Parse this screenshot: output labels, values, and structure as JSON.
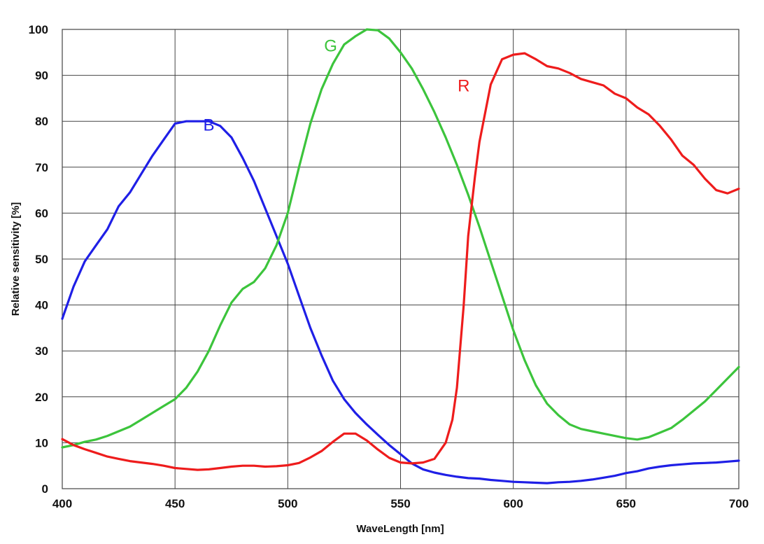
{
  "chart_data": {
    "type": "line",
    "title": "",
    "xlabel": "WaveLength [nm]",
    "ylabel": "Relative sensitivity [%]",
    "xlim": [
      400,
      700
    ],
    "ylim": [
      0,
      100
    ],
    "xticks": [
      400,
      450,
      500,
      550,
      600,
      650,
      700
    ],
    "yticks": [
      0,
      10,
      20,
      30,
      40,
      50,
      60,
      70,
      80,
      90,
      100
    ],
    "grid": true,
    "legend": "inline labels",
    "series": [
      {
        "name": "B",
        "color": "#1f1fe6",
        "label_at": [
          465,
          78
        ],
        "points": [
          [
            400,
            37
          ],
          [
            405,
            44
          ],
          [
            410,
            49.5
          ],
          [
            415,
            53
          ],
          [
            420,
            56.5
          ],
          [
            425,
            61.5
          ],
          [
            430,
            64.5
          ],
          [
            435,
            68.5
          ],
          [
            440,
            72.5
          ],
          [
            445,
            76
          ],
          [
            450,
            79.5
          ],
          [
            455,
            80
          ],
          [
            460,
            80
          ],
          [
            465,
            80
          ],
          [
            470,
            79
          ],
          [
            475,
            76.5
          ],
          [
            480,
            72
          ],
          [
            485,
            67
          ],
          [
            490,
            61
          ],
          [
            495,
            55
          ],
          [
            500,
            49
          ],
          [
            505,
            42
          ],
          [
            510,
            35
          ],
          [
            515,
            29
          ],
          [
            520,
            23.5
          ],
          [
            525,
            19.5
          ],
          [
            530,
            16.5
          ],
          [
            535,
            14
          ],
          [
            540,
            11.7
          ],
          [
            545,
            9.5
          ],
          [
            550,
            7.5
          ],
          [
            555,
            5.5
          ],
          [
            560,
            4.2
          ],
          [
            565,
            3.5
          ],
          [
            570,
            3
          ],
          [
            575,
            2.6
          ],
          [
            580,
            2.3
          ],
          [
            585,
            2.2
          ],
          [
            590,
            1.9
          ],
          [
            595,
            1.7
          ],
          [
            600,
            1.5
          ],
          [
            605,
            1.4
          ],
          [
            610,
            1.3
          ],
          [
            615,
            1.2
          ],
          [
            620,
            1.4
          ],
          [
            625,
            1.5
          ],
          [
            630,
            1.7
          ],
          [
            635,
            2
          ],
          [
            640,
            2.4
          ],
          [
            645,
            2.8
          ],
          [
            650,
            3.4
          ],
          [
            655,
            3.8
          ],
          [
            660,
            4.4
          ],
          [
            665,
            4.8
          ],
          [
            670,
            5.1
          ],
          [
            675,
            5.3
          ],
          [
            680,
            5.5
          ],
          [
            685,
            5.6
          ],
          [
            690,
            5.7
          ],
          [
            695,
            5.9
          ],
          [
            700,
            6.1
          ]
        ]
      },
      {
        "name": "G",
        "color": "#3cc43c",
        "label_at": [
          519,
          95.2
        ],
        "points": [
          [
            400,
            9
          ],
          [
            405,
            9.5
          ],
          [
            410,
            10.2
          ],
          [
            415,
            10.7
          ],
          [
            420,
            11.5
          ],
          [
            425,
            12.5
          ],
          [
            430,
            13.5
          ],
          [
            435,
            15
          ],
          [
            440,
            16.5
          ],
          [
            445,
            18
          ],
          [
            450,
            19.5
          ],
          [
            455,
            22
          ],
          [
            460,
            25.5
          ],
          [
            465,
            30
          ],
          [
            470,
            35.5
          ],
          [
            475,
            40.5
          ],
          [
            480,
            43.5
          ],
          [
            485,
            45
          ],
          [
            490,
            48
          ],
          [
            495,
            53
          ],
          [
            500,
            60
          ],
          [
            505,
            70
          ],
          [
            510,
            79.5
          ],
          [
            515,
            87
          ],
          [
            520,
            92.5
          ],
          [
            525,
            96.7
          ],
          [
            530,
            98.5
          ],
          [
            535,
            100
          ],
          [
            540,
            99.8
          ],
          [
            545,
            98
          ],
          [
            550,
            95
          ],
          [
            555,
            91.5
          ],
          [
            560,
            87
          ],
          [
            565,
            82
          ],
          [
            570,
            76.5
          ],
          [
            575,
            70.5
          ],
          [
            580,
            64
          ],
          [
            585,
            57
          ],
          [
            590,
            49.5
          ],
          [
            595,
            42
          ],
          [
            600,
            34.5
          ],
          [
            605,
            28
          ],
          [
            610,
            22.5
          ],
          [
            615,
            18.5
          ],
          [
            620,
            16
          ],
          [
            625,
            14
          ],
          [
            630,
            13
          ],
          [
            635,
            12.5
          ],
          [
            640,
            12
          ],
          [
            645,
            11.5
          ],
          [
            650,
            11
          ],
          [
            655,
            10.7
          ],
          [
            660,
            11.2
          ],
          [
            665,
            12.2
          ],
          [
            670,
            13.2
          ],
          [
            675,
            15
          ],
          [
            680,
            17
          ],
          [
            685,
            19
          ],
          [
            690,
            21.5
          ],
          [
            695,
            24
          ],
          [
            700,
            26.5
          ]
        ]
      },
      {
        "name": "R",
        "color": "#ee1c1c",
        "label_at": [
          578,
          86.5
        ],
        "points": [
          [
            400,
            10.8
          ],
          [
            405,
            9.5
          ],
          [
            410,
            8.6
          ],
          [
            415,
            7.8
          ],
          [
            420,
            7
          ],
          [
            425,
            6.5
          ],
          [
            430,
            6
          ],
          [
            435,
            5.7
          ],
          [
            440,
            5.4
          ],
          [
            445,
            5
          ],
          [
            450,
            4.5
          ],
          [
            455,
            4.3
          ],
          [
            460,
            4.1
          ],
          [
            465,
            4.2
          ],
          [
            470,
            4.5
          ],
          [
            475,
            4.8
          ],
          [
            480,
            5
          ],
          [
            485,
            5
          ],
          [
            490,
            4.8
          ],
          [
            495,
            4.9
          ],
          [
            500,
            5.1
          ],
          [
            505,
            5.6
          ],
          [
            510,
            6.8
          ],
          [
            515,
            8.2
          ],
          [
            520,
            10.2
          ],
          [
            525,
            12
          ],
          [
            530,
            12
          ],
          [
            535,
            10.5
          ],
          [
            540,
            8.5
          ],
          [
            545,
            6.7
          ],
          [
            550,
            5.7
          ],
          [
            555,
            5.5
          ],
          [
            560,
            5.7
          ],
          [
            565,
            6.5
          ],
          [
            570,
            10
          ],
          [
            573,
            15
          ],
          [
            575,
            22
          ],
          [
            578,
            40
          ],
          [
            580,
            55
          ],
          [
            583,
            68
          ],
          [
            585,
            75.5
          ],
          [
            590,
            88
          ],
          [
            595,
            93.5
          ],
          [
            600,
            94.5
          ],
          [
            605,
            94.8
          ],
          [
            610,
            93.5
          ],
          [
            615,
            92
          ],
          [
            620,
            91.5
          ],
          [
            625,
            90.5
          ],
          [
            630,
            89.2
          ],
          [
            635,
            88.5
          ],
          [
            640,
            87.8
          ],
          [
            645,
            86
          ],
          [
            650,
            85
          ],
          [
            655,
            83
          ],
          [
            660,
            81.5
          ],
          [
            665,
            79
          ],
          [
            670,
            76
          ],
          [
            675,
            72.5
          ],
          [
            680,
            70.5
          ],
          [
            685,
            67.5
          ],
          [
            690,
            65
          ],
          [
            695,
            64.3
          ],
          [
            700,
            65.3
          ]
        ]
      }
    ]
  }
}
